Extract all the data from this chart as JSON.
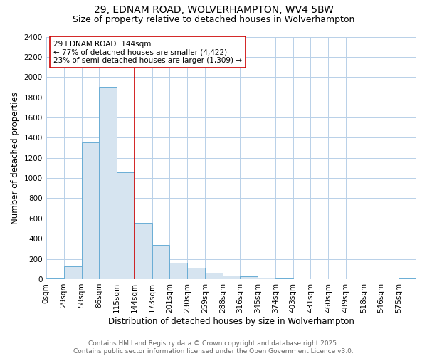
{
  "title_line1": "29, EDNAM ROAD, WOLVERHAMPTON, WV4 5BW",
  "title_line2": "Size of property relative to detached houses in Wolverhampton",
  "xlabel": "Distribution of detached houses by size in Wolverhampton",
  "ylabel": "Number of detached properties",
  "bin_labels": [
    "0sqm",
    "29sqm",
    "58sqm",
    "86sqm",
    "115sqm",
    "144sqm",
    "173sqm",
    "201sqm",
    "230sqm",
    "259sqm",
    "288sqm",
    "316sqm",
    "345sqm",
    "374sqm",
    "403sqm",
    "431sqm",
    "460sqm",
    "489sqm",
    "518sqm",
    "546sqm",
    "575sqm"
  ],
  "bin_edges": [
    0,
    29,
    58,
    86,
    115,
    144,
    173,
    201,
    230,
    259,
    288,
    316,
    345,
    374,
    403,
    431,
    460,
    489,
    518,
    546,
    575,
    604
  ],
  "bar_heights": [
    10,
    130,
    1350,
    1900,
    1060,
    560,
    335,
    165,
    110,
    65,
    35,
    25,
    15,
    5,
    3,
    2,
    1,
    1,
    1,
    0,
    10
  ],
  "bar_facecolor": "#d6e4f0",
  "bar_edgecolor": "#6aadd5",
  "reference_line_x": 144,
  "reference_line_color": "#cc0000",
  "annotation_text": "29 EDNAM ROAD: 144sqm\n← 77% of detached houses are smaller (4,422)\n23% of semi-detached houses are larger (1,309) →",
  "annotation_box_edgecolor": "#cc0000",
  "annotation_box_facecolor": "#ffffff",
  "ylim": [
    0,
    2400
  ],
  "yticks": [
    0,
    200,
    400,
    600,
    800,
    1000,
    1200,
    1400,
    1600,
    1800,
    2000,
    2200,
    2400
  ],
  "grid_color": "#b8d0e8",
  "bg_color": "#ffffff",
  "footnote": "Contains HM Land Registry data © Crown copyright and database right 2025.\nContains public sector information licensed under the Open Government Licence v3.0.",
  "title_fontsize": 10,
  "subtitle_fontsize": 9,
  "axis_label_fontsize": 8.5,
  "tick_fontsize": 7.5,
  "annotation_fontsize": 7.5,
  "footnote_fontsize": 6.5
}
